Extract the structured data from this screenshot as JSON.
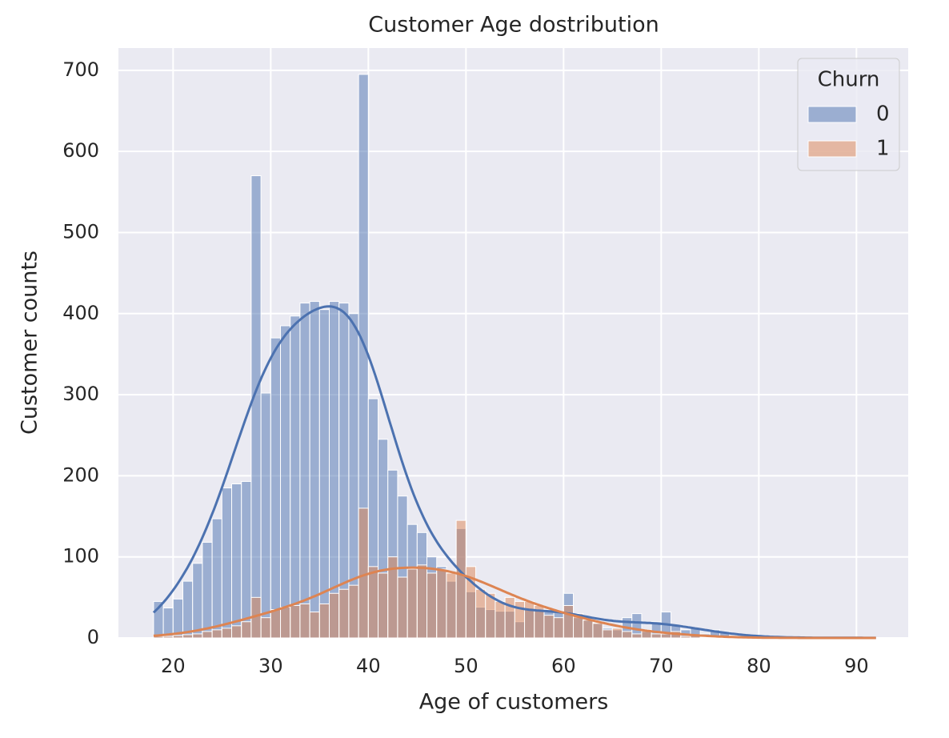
{
  "chart_data": {
    "type": "histogram",
    "title": "Customer Age dostribution",
    "xlabel": "Age of customers",
    "ylabel": "Customer counts",
    "bins": [
      18,
      19,
      20,
      21,
      22,
      23,
      24,
      25,
      26,
      27,
      28,
      29,
      30,
      31,
      32,
      33,
      34,
      35,
      36,
      37,
      38,
      39,
      40,
      41,
      42,
      43,
      44,
      45,
      46,
      47,
      48,
      49,
      50,
      51,
      52,
      53,
      54,
      55,
      56,
      57,
      58,
      59,
      60,
      61,
      62,
      63,
      64,
      65,
      66,
      67,
      68,
      69,
      70,
      71,
      72,
      73,
      74,
      75,
      76,
      77,
      78,
      79,
      80,
      81,
      82,
      83,
      84,
      85,
      86,
      87,
      88,
      89,
      90,
      91,
      92
    ],
    "series": [
      {
        "name": "0",
        "color": "#4c72b0",
        "values": [
          45,
          37,
          48,
          70,
          92,
          118,
          147,
          185,
          190,
          193,
          570,
          302,
          370,
          385,
          397,
          413,
          415,
          405,
          415,
          413,
          400,
          695,
          295,
          245,
          207,
          175,
          140,
          130,
          100,
          88,
          70,
          135,
          57,
          38,
          35,
          33,
          33,
          20,
          35,
          35,
          35,
          33,
          55,
          25,
          22,
          18,
          12,
          10,
          25,
          30,
          8,
          20,
          32,
          15,
          10,
          12,
          5,
          10,
          8,
          3,
          1,
          1,
          0,
          1,
          1,
          0,
          1,
          0,
          0,
          0,
          0,
          0,
          0,
          1
        ]
      },
      {
        "name": "1",
        "color": "#dd8452",
        "values": [
          2,
          2,
          3,
          4,
          5,
          8,
          10,
          12,
          15,
          20,
          50,
          25,
          35,
          38,
          40,
          42,
          32,
          42,
          55,
          60,
          65,
          160,
          88,
          80,
          100,
          75,
          85,
          90,
          80,
          85,
          80,
          145,
          88,
          60,
          55,
          45,
          50,
          45,
          45,
          40,
          28,
          25,
          40,
          30,
          22,
          18,
          10,
          12,
          8,
          5,
          10,
          5,
          5,
          8,
          2,
          3,
          1,
          1,
          0,
          0,
          0,
          0,
          0,
          0,
          0,
          0,
          0,
          0,
          0,
          0,
          0,
          0,
          0,
          0
        ]
      }
    ],
    "legend_title": "Churn",
    "legend": "upper right",
    "kde": true,
    "grid": true,
    "xlim": [
      14.4,
      95.3
    ],
    "ylim": [
      0,
      727.5
    ],
    "xticks": [
      20,
      30,
      40,
      50,
      60,
      70,
      80,
      90
    ],
    "yticks": [
      0,
      100,
      200,
      300,
      400,
      500,
      600,
      700
    ]
  }
}
